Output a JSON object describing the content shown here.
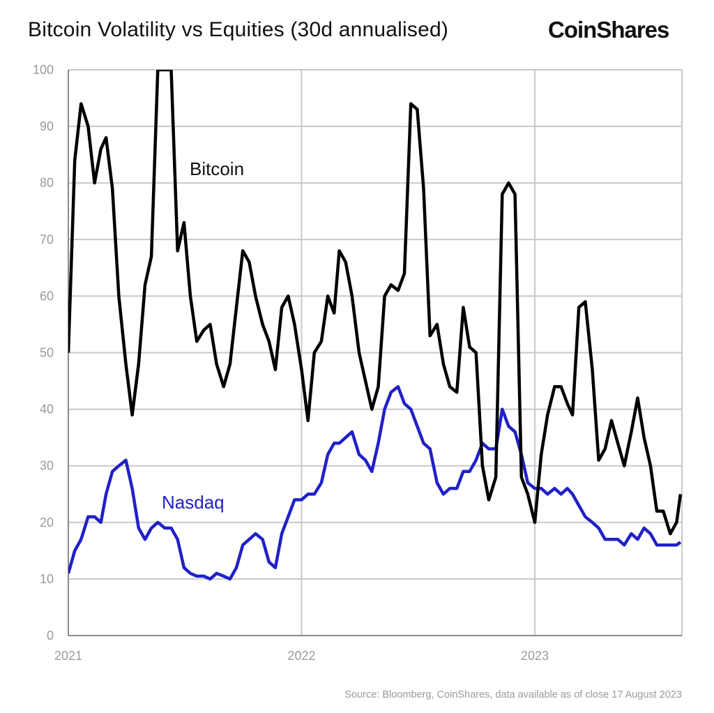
{
  "title": "Bitcoin Volatility vs Equities (30d annualised)",
  "logo": "CoinShares",
  "source": "Source: Bloomberg, CoinShares, data available as of close 17 August 2023",
  "chart_data": {
    "type": "line",
    "title": "Bitcoin Volatility vs Equities (30d annualised)",
    "xlabel": "",
    "ylabel": "",
    "ylim": [
      0,
      100
    ],
    "xlim": [
      "2021-01-01",
      "2023-08-17"
    ],
    "yticks": [
      "0",
      "10",
      "20",
      "30",
      "40",
      "50",
      "60",
      "70",
      "80",
      "90",
      "100"
    ],
    "xticks": [
      {
        "label": "2021",
        "date": "2021-01-01"
      },
      {
        "label": "2022",
        "date": "2022-01-01"
      },
      {
        "label": "2023",
        "date": "2023-01-01"
      }
    ],
    "grid": true,
    "legend": "inline labels",
    "dates": [
      "2021-01-01",
      "2021-01-11",
      "2021-01-21",
      "2021-02-01",
      "2021-02-11",
      "2021-02-21",
      "2021-03-01",
      "2021-03-11",
      "2021-03-21",
      "2021-04-01",
      "2021-04-11",
      "2021-04-21",
      "2021-05-01",
      "2021-05-11",
      "2021-05-21",
      "2021-06-01",
      "2021-06-11",
      "2021-06-21",
      "2021-07-01",
      "2021-07-11",
      "2021-07-21",
      "2021-08-01",
      "2021-08-11",
      "2021-08-21",
      "2021-09-01",
      "2021-09-11",
      "2021-09-21",
      "2021-10-01",
      "2021-10-11",
      "2021-10-21",
      "2021-11-01",
      "2021-11-11",
      "2021-11-21",
      "2021-12-01",
      "2021-12-11",
      "2021-12-21",
      "2022-01-01",
      "2022-01-11",
      "2022-01-21",
      "2022-02-01",
      "2022-02-11",
      "2022-02-21",
      "2022-03-01",
      "2022-03-11",
      "2022-03-21",
      "2022-04-01",
      "2022-04-11",
      "2022-04-21",
      "2022-05-01",
      "2022-05-11",
      "2022-05-21",
      "2022-06-01",
      "2022-06-11",
      "2022-06-21",
      "2022-07-01",
      "2022-07-11",
      "2022-07-21",
      "2022-08-01",
      "2022-08-11",
      "2022-08-21",
      "2022-09-01",
      "2022-09-11",
      "2022-09-21",
      "2022-10-01",
      "2022-10-11",
      "2022-10-21",
      "2022-11-01",
      "2022-11-11",
      "2022-11-21",
      "2022-12-01",
      "2022-12-11",
      "2022-12-21",
      "2023-01-01",
      "2023-01-11",
      "2023-01-21",
      "2023-02-01",
      "2023-02-11",
      "2023-02-21",
      "2023-03-01",
      "2023-03-11",
      "2023-03-21",
      "2023-04-01",
      "2023-04-11",
      "2023-04-21",
      "2023-05-01",
      "2023-05-11",
      "2023-05-21",
      "2023-06-01",
      "2023-06-11",
      "2023-06-21",
      "2023-07-01",
      "2023-07-11",
      "2023-07-21",
      "2023-08-01",
      "2023-08-11",
      "2023-08-17"
    ],
    "series": [
      {
        "name": "Bitcoin",
        "color": "#000000",
        "values": [
          50,
          84,
          94,
          90,
          80,
          86,
          88,
          79,
          60,
          48,
          39,
          48,
          62,
          67,
          100,
          100,
          100,
          68,
          73,
          60,
          52,
          54,
          55,
          48,
          44,
          48,
          58,
          68,
          66,
          60,
          55,
          52,
          47,
          58,
          60,
          55,
          47,
          38,
          50,
          52,
          60,
          57,
          68,
          66,
          60,
          50,
          45,
          40,
          44,
          60,
          62,
          61,
          64,
          94,
          93,
          79,
          53,
          55,
          48,
          44,
          43,
          58,
          51,
          50,
          30,
          24,
          28,
          78,
          80,
          78,
          28,
          25,
          20,
          32,
          39,
          44,
          44,
          41,
          39,
          58,
          59,
          47,
          31,
          33,
          38,
          34,
          30,
          36,
          42,
          35,
          30,
          22,
          22,
          18,
          20,
          25
        ]
      },
      {
        "name": "Nasdaq",
        "color": "#2020c8",
        "values": [
          11,
          15,
          17,
          21,
          21,
          20,
          25,
          29,
          30,
          31,
          26,
          19,
          17,
          19,
          20,
          19,
          19,
          17,
          12,
          11,
          10.5,
          10.5,
          10,
          11,
          10.5,
          10,
          12,
          16,
          17,
          18,
          17,
          13,
          12,
          18,
          21,
          24,
          24,
          25,
          25,
          27,
          32,
          34,
          34,
          35,
          36,
          32,
          31,
          29,
          34,
          40,
          43,
          44,
          41,
          40,
          37,
          34,
          33,
          27,
          25,
          26,
          26,
          29,
          29,
          31,
          34,
          33,
          33,
          40,
          37,
          36,
          32,
          27,
          26,
          26,
          25,
          26,
          25,
          26,
          25,
          23,
          21,
          20,
          19,
          17,
          17,
          17,
          16,
          18,
          17,
          19,
          18,
          16,
          16,
          16,
          16,
          16.5
        ]
      }
    ]
  }
}
